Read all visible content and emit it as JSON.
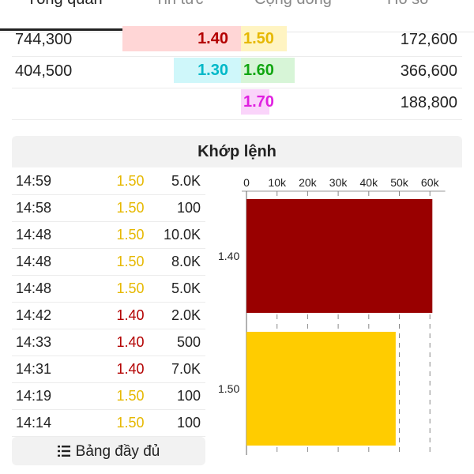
{
  "tabs": [
    {
      "label": "Tổng quan",
      "active": true
    },
    {
      "label": "Tin tức",
      "active": false
    },
    {
      "label": "Cộng đồng",
      "active": false
    },
    {
      "label": "Hồ sơ",
      "active": false
    }
  ],
  "order_book": [
    {
      "bid_volume": "744,300",
      "bid_price": "1.40",
      "ask_price": "1.50",
      "ask_volume": "172,600"
    },
    {
      "bid_volume": "404,500",
      "bid_price": "1.30",
      "ask_price": "1.60",
      "ask_volume": "366,600"
    },
    {
      "bid_volume": "",
      "bid_price": "",
      "ask_price": "1.70",
      "ask_volume": "188,800"
    }
  ],
  "match_title": "Khớp lệnh",
  "trades": [
    {
      "time": "14:59",
      "price": "1.50",
      "volume": "5.0K"
    },
    {
      "time": "14:58",
      "price": "1.50",
      "volume": "100"
    },
    {
      "time": "14:48",
      "price": "1.50",
      "volume": "10.0K"
    },
    {
      "time": "14:48",
      "price": "1.50",
      "volume": "8.0K"
    },
    {
      "time": "14:48",
      "price": "1.50",
      "volume": "5.0K"
    },
    {
      "time": "14:42",
      "price": "1.40",
      "volume": "2.0K"
    },
    {
      "time": "14:33",
      "price": "1.40",
      "volume": "500"
    },
    {
      "time": "14:31",
      "price": "1.40",
      "volume": "7.0K"
    },
    {
      "time": "14:19",
      "price": "1.50",
      "volume": "100"
    },
    {
      "time": "14:14",
      "price": "1.50",
      "volume": "100"
    }
  ],
  "full_table_label": "Bảng đầy đủ",
  "icons": {
    "full_table": "list-icon"
  },
  "colors": {
    "bid_140_text": "#b30000",
    "bid_140_bar": "#ffd6d6",
    "bid_130_text": "#00b8c8",
    "bid_130_bar": "#cff7fa",
    "ask_150_text": "#e6b800",
    "ask_150_bar": "#fff4c2",
    "ask_160_text": "#11a611",
    "ask_160_bar": "#d7f5d7",
    "ask_170_text": "#e020e0",
    "ask_170_bar": "#fad4fa",
    "price_150": "#e6b800",
    "price_140": "#b30000",
    "bar_140": "#990000",
    "bar_150": "#ffcc00"
  },
  "chart_data": {
    "type": "bar",
    "orientation": "horizontal",
    "categories": [
      "1.40",
      "1.50"
    ],
    "values": [
      60800,
      48800
    ],
    "xlim": [
      0,
      65000
    ],
    "xticks": [
      0,
      10000,
      20000,
      30000,
      40000,
      50000,
      60000
    ],
    "xtick_labels": [
      "0",
      "10k",
      "20k",
      "30k",
      "40k",
      "50k",
      "60k"
    ],
    "grid": true,
    "colors": [
      "#990000",
      "#ffcc00"
    ]
  }
}
